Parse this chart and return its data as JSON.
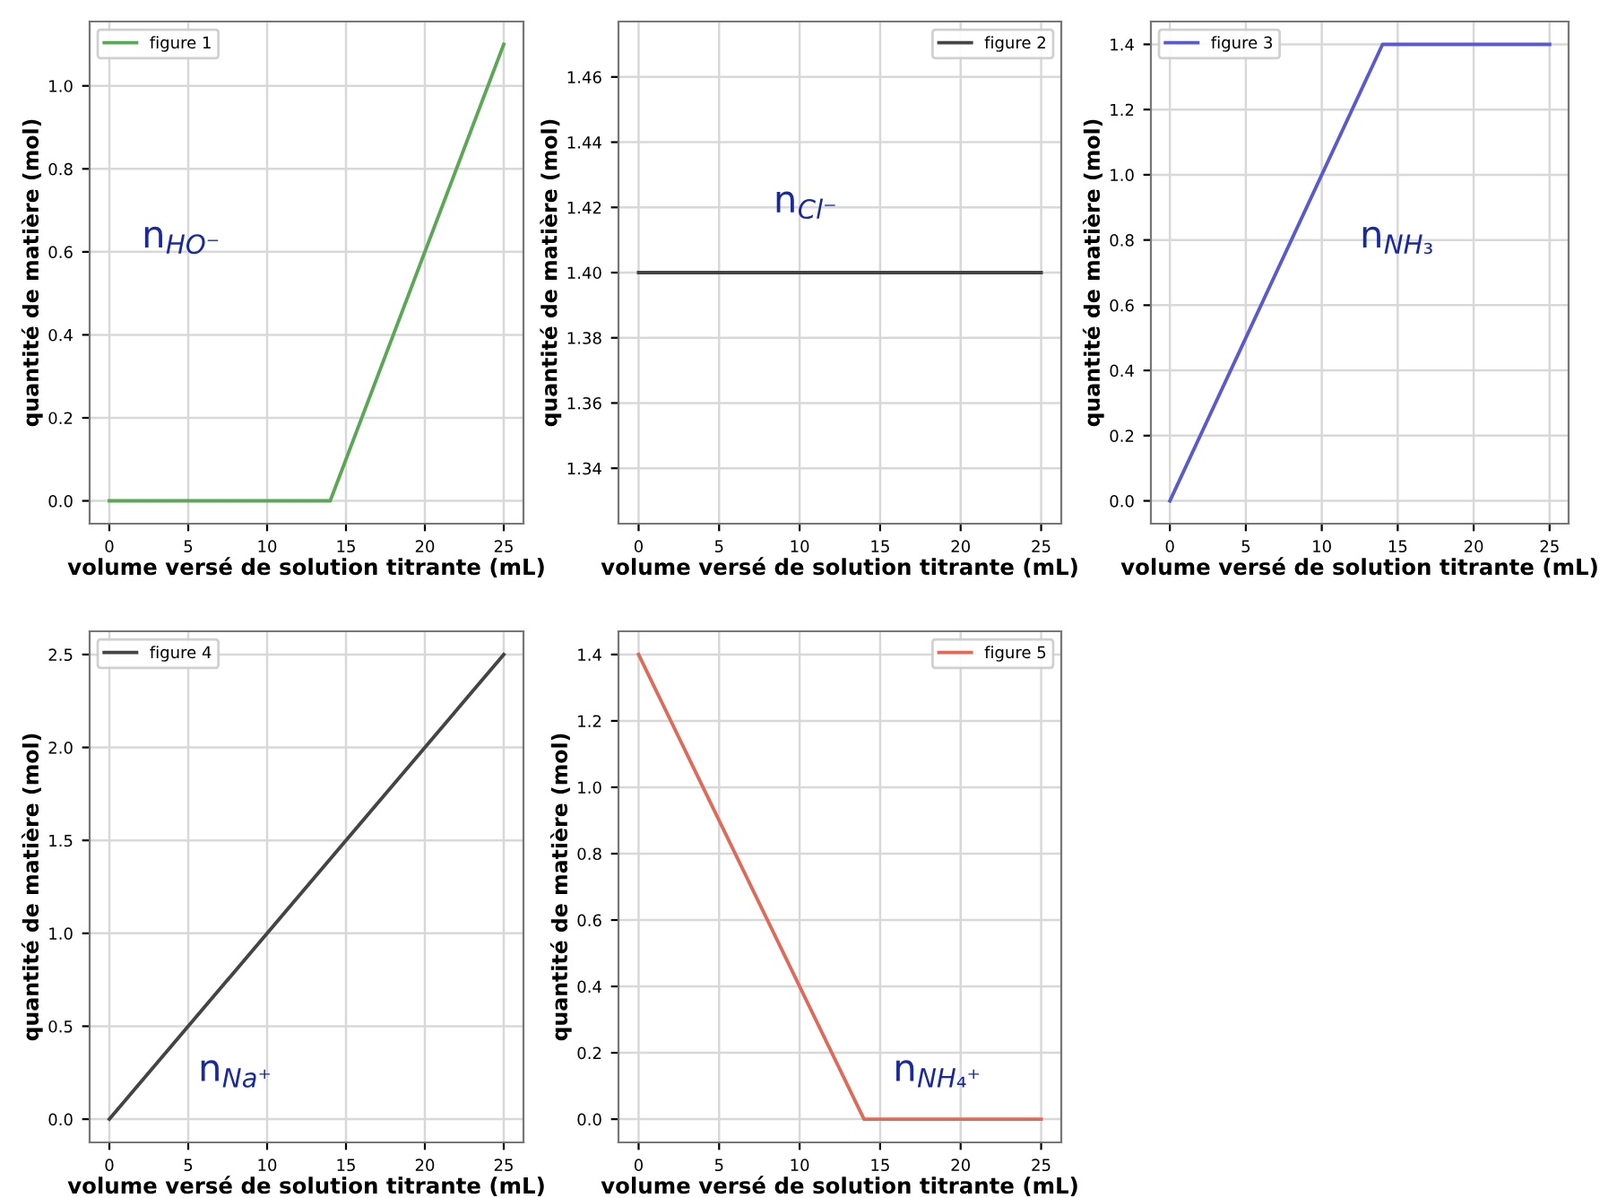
{
  "chart_data": [
    {
      "type": "line",
      "xlabel": "volume versé de solution titrante (mL)",
      "ylabel": "quantité de matière (mol)",
      "xlim": [
        -1.25,
        26.25
      ],
      "xticks": [
        0,
        5,
        10,
        15,
        20,
        25
      ],
      "ylim": [
        -0.055,
        1.155
      ],
      "yticks": [
        {
          "value": 0,
          "label": "0.0"
        },
        0.2,
        0.4,
        0.6,
        0.8,
        {
          "value": 1,
          "label": "1.0"
        }
      ],
      "grid": true,
      "legend": "top left",
      "annotations": [
        "n$_{HO⁻}$"
      ],
      "series": [
        {
          "name": "figure 1",
          "color": "#5aa856",
          "x": [
            0,
            14,
            25
          ],
          "values": [
            0,
            0,
            1.1
          ]
        }
      ]
    },
    {
      "type": "line",
      "xlabel": "volume versé de solution titrante (mL)",
      "ylabel": "quantité de matière (mol)",
      "xlim": [
        -1.25,
        26.25
      ],
      "xticks": [
        0,
        5,
        10,
        15,
        20,
        25
      ],
      "ylim": [
        1.323,
        1.477
      ],
      "yticks": [
        1.34,
        1.36,
        1.38,
        {
          "value": 1.4,
          "label": "1.40"
        },
        1.42,
        1.44,
        1.46
      ],
      "grid": true,
      "legend": "top right",
      "annotations": [
        "n$_{Cl⁻}$"
      ],
      "series": [
        {
          "name": "figure 2",
          "color": "#444444",
          "x": [
            0,
            25
          ],
          "values": [
            1.4,
            1.4
          ]
        }
      ]
    },
    {
      "type": "line",
      "xlabel": "volume versé de solution titrante (mL)",
      "ylabel": "quantité de matière (mol)",
      "xlim": [
        -1.25,
        26.25
      ],
      "xticks": [
        0,
        5,
        10,
        15,
        20,
        25
      ],
      "ylim": [
        -0.07,
        1.47
      ],
      "yticks": [
        {
          "value": 0,
          "label": "0.0"
        },
        0.2,
        0.4,
        0.6,
        0.8,
        {
          "value": 1,
          "label": "1.0"
        },
        1.2,
        1.4
      ],
      "grid": true,
      "legend": "top left",
      "annotations": [
        "n$_{NH₃}$"
      ],
      "series": [
        {
          "name": "figure 3",
          "color": "#5a5acc",
          "x": [
            0,
            14,
            25
          ],
          "values": [
            0,
            1.4,
            1.4
          ]
        }
      ]
    },
    {
      "type": "line",
      "xlabel": "volume versé de solution titrante (mL)",
      "ylabel": "quantité de matière (mol)",
      "xlim": [
        -1.25,
        26.25
      ],
      "xticks": [
        0,
        5,
        10,
        15,
        20,
        25
      ],
      "ylim": [
        -0.125,
        2.625
      ],
      "yticks": [
        {
          "value": 0,
          "label": "0.0"
        },
        0.5,
        {
          "value": 1,
          "label": "1.0"
        },
        1.5,
        {
          "value": 2,
          "label": "2.0"
        },
        2.5
      ],
      "grid": true,
      "legend": "top left",
      "annotations": [
        "n$_{Na⁺}$"
      ],
      "series": [
        {
          "name": "figure 4",
          "color": "#444444",
          "x": [
            0,
            25
          ],
          "values": [
            0,
            2.5
          ]
        }
      ]
    },
    {
      "type": "line",
      "xlabel": "volume versé de solution titrante (mL)",
      "ylabel": "quantité de matière (mol)",
      "xlim": [
        -1.25,
        26.25
      ],
      "xticks": [
        0,
        5,
        10,
        15,
        20,
        25
      ],
      "ylim": [
        -0.07,
        1.47
      ],
      "yticks": [
        {
          "value": 0,
          "label": "0.0"
        },
        0.2,
        0.4,
        0.6,
        0.8,
        {
          "value": 1,
          "label": "1.0"
        },
        1.2,
        1.4
      ],
      "grid": true,
      "legend": "top right",
      "annotations": [
        "n$_{NH₄⁺}$"
      ],
      "series": [
        {
          "name": "figure 5",
          "color": "#e06a5a",
          "x": [
            0,
            14,
            25
          ],
          "values": [
            1.4,
            0,
            0
          ]
        }
      ]
    }
  ]
}
